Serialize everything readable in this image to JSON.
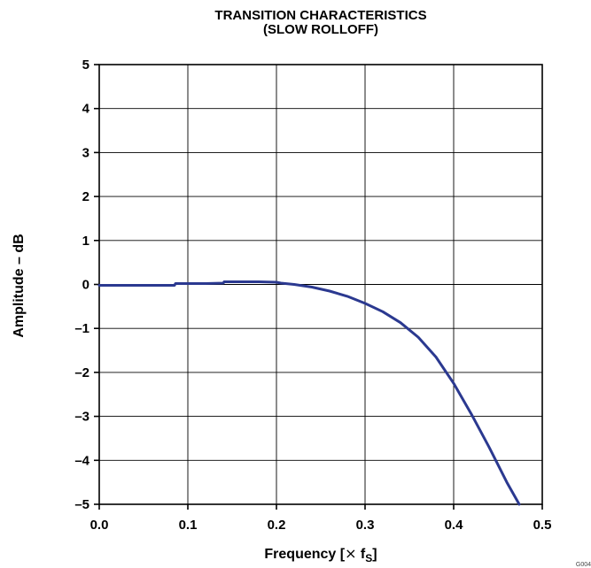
{
  "chart_data": {
    "type": "line",
    "title_line1": "TRANSITION CHARACTERISTICS",
    "title_line2": "(SLOW ROLLOFF)",
    "xlabel_prefix": "Frequency [",
    "xlabel_times": "×",
    "xlabel_f": " f",
    "xlabel_sub": "S",
    "xlabel_suffix": "]",
    "ylabel": "Amplitude – dB",
    "xlim": [
      0.0,
      0.5
    ],
    "ylim": [
      -5,
      5
    ],
    "x_ticks": [
      "0.0",
      "0.1",
      "0.2",
      "0.3",
      "0.4",
      "0.5"
    ],
    "y_ticks": [
      "5",
      "4",
      "3",
      "2",
      "1",
      "0",
      "–1",
      "–2",
      "–3",
      "–4",
      "–5"
    ],
    "grid": true,
    "line_color": "#2b3990",
    "series": [
      {
        "x": [
          0.0,
          0.05,
          0.085,
          0.086,
          0.12,
          0.14,
          0.141,
          0.18,
          0.2,
          0.205,
          0.22,
          0.24,
          0.26,
          0.28,
          0.3,
          0.32,
          0.34,
          0.36,
          0.38,
          0.4,
          0.42,
          0.44,
          0.46,
          0.474
        ],
        "y": [
          -0.02,
          -0.02,
          -0.02,
          0.02,
          0.02,
          0.03,
          0.06,
          0.06,
          0.05,
          0.03,
          0.0,
          -0.06,
          -0.15,
          -0.27,
          -0.43,
          -0.62,
          -0.87,
          -1.2,
          -1.65,
          -2.25,
          -2.95,
          -3.7,
          -4.5,
          -5.0
        ]
      }
    ]
  },
  "footer": {
    "figure_code": "G004"
  }
}
